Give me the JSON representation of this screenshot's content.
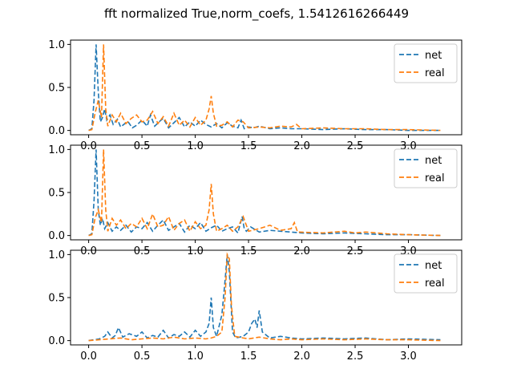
{
  "figure": {
    "title": "fft normalized True,norm_coefs, 1.5412616266449"
  },
  "chart_data": [
    {
      "type": "line",
      "xlim": [
        -0.17,
        3.5
      ],
      "ylim": [
        -0.05,
        1.05
      ],
      "xticks": [
        "0.0",
        "0.5",
        "1.0",
        "1.5",
        "2.0",
        "2.5",
        "3.0"
      ],
      "yticks": [
        "0.0",
        "0.5",
        "1.0"
      ],
      "legend_position": "top-right",
      "series": [
        {
          "name": "net",
          "color": "#1f77b4",
          "x": [
            0.0,
            0.03,
            0.05,
            0.07,
            0.09,
            0.11,
            0.13,
            0.15,
            0.17,
            0.2,
            0.23,
            0.27,
            0.3,
            0.34,
            0.37,
            0.41,
            0.45,
            0.5,
            0.55,
            0.58,
            0.62,
            0.66,
            0.7,
            0.75,
            0.8,
            0.85,
            0.9,
            0.95,
            1.0,
            1.05,
            1.1,
            1.15,
            1.2,
            1.25,
            1.3,
            1.35,
            1.4,
            1.43,
            1.46,
            1.5,
            1.55,
            1.6,
            1.7,
            1.8,
            1.9,
            2.0,
            2.2,
            2.4,
            2.6,
            2.8,
            3.0,
            3.3
          ],
          "y": [
            0.0,
            0.02,
            0.35,
            1.0,
            0.45,
            0.1,
            0.15,
            0.25,
            0.12,
            0.18,
            0.07,
            0.13,
            0.04,
            0.08,
            0.1,
            0.03,
            0.06,
            0.12,
            0.05,
            0.18,
            0.05,
            0.1,
            0.14,
            0.03,
            0.09,
            0.15,
            0.04,
            0.1,
            0.05,
            0.12,
            0.07,
            0.04,
            0.08,
            0.03,
            0.09,
            0.05,
            0.03,
            0.12,
            0.02,
            0.04,
            0.03,
            0.05,
            0.02,
            0.03,
            0.02,
            0.02,
            0.01,
            0.02,
            0.01,
            0.01,
            0.0,
            0.0
          ]
        },
        {
          "name": "real",
          "color": "#ff7f0e",
          "x": [
            0.0,
            0.03,
            0.06,
            0.09,
            0.12,
            0.14,
            0.16,
            0.18,
            0.22,
            0.26,
            0.3,
            0.35,
            0.4,
            0.45,
            0.5,
            0.55,
            0.6,
            0.65,
            0.7,
            0.75,
            0.8,
            0.85,
            0.9,
            0.95,
            1.0,
            1.05,
            1.1,
            1.13,
            1.15,
            1.17,
            1.2,
            1.25,
            1.3,
            1.35,
            1.4,
            1.45,
            1.5,
            1.6,
            1.7,
            1.8,
            1.9,
            1.95,
            2.0,
            2.2,
            2.4,
            2.6,
            2.8,
            3.0,
            3.3
          ],
          "y": [
            0.0,
            0.01,
            0.2,
            0.35,
            0.15,
            1.0,
            0.25,
            0.05,
            0.18,
            0.1,
            0.2,
            0.08,
            0.14,
            0.18,
            0.1,
            0.12,
            0.22,
            0.08,
            0.16,
            0.05,
            0.2,
            0.06,
            0.12,
            0.04,
            0.15,
            0.06,
            0.12,
            0.25,
            0.4,
            0.2,
            0.05,
            0.06,
            0.1,
            0.04,
            0.12,
            0.1,
            0.03,
            0.04,
            0.03,
            0.05,
            0.04,
            0.07,
            0.02,
            0.03,
            0.02,
            0.02,
            0.01,
            0.01,
            0.0
          ]
        }
      ]
    },
    {
      "type": "line",
      "xlim": [
        -0.17,
        3.5
      ],
      "ylim": [
        -0.05,
        1.05
      ],
      "xticks": [
        "0.0",
        "0.5",
        "1.0",
        "1.5",
        "2.0",
        "2.5",
        "3.0"
      ],
      "yticks": [
        "0.0",
        "0.5",
        "1.0"
      ],
      "legend_position": "top-right",
      "series": [
        {
          "name": "net",
          "color": "#1f77b4",
          "x": [
            0.0,
            0.03,
            0.05,
            0.07,
            0.09,
            0.11,
            0.13,
            0.15,
            0.18,
            0.22,
            0.26,
            0.3,
            0.35,
            0.4,
            0.45,
            0.5,
            0.55,
            0.6,
            0.65,
            0.7,
            0.75,
            0.8,
            0.85,
            0.9,
            0.95,
            1.0,
            1.05,
            1.1,
            1.15,
            1.2,
            1.25,
            1.3,
            1.35,
            1.4,
            1.44,
            1.46,
            1.48,
            1.52,
            1.6,
            1.7,
            1.8,
            1.9,
            2.0,
            2.2,
            2.4,
            2.6,
            2.8,
            3.0,
            3.3
          ],
          "y": [
            0.0,
            0.02,
            0.4,
            1.0,
            0.3,
            0.12,
            0.2,
            0.08,
            0.15,
            0.05,
            0.1,
            0.06,
            0.12,
            0.04,
            0.1,
            0.08,
            0.15,
            0.05,
            0.12,
            0.18,
            0.06,
            0.1,
            0.14,
            0.04,
            0.12,
            0.08,
            0.15,
            0.05,
            0.09,
            0.12,
            0.05,
            0.08,
            0.1,
            0.03,
            0.22,
            0.08,
            0.05,
            0.1,
            0.04,
            0.06,
            0.05,
            0.04,
            0.03,
            0.02,
            0.03,
            0.02,
            0.01,
            0.01,
            0.0
          ]
        },
        {
          "name": "real",
          "color": "#ff7f0e",
          "x": [
            0.0,
            0.03,
            0.06,
            0.09,
            0.12,
            0.14,
            0.16,
            0.18,
            0.22,
            0.26,
            0.3,
            0.35,
            0.4,
            0.45,
            0.5,
            0.55,
            0.6,
            0.65,
            0.7,
            0.75,
            0.8,
            0.85,
            0.9,
            0.95,
            1.0,
            1.05,
            1.1,
            1.13,
            1.15,
            1.17,
            1.2,
            1.25,
            1.3,
            1.35,
            1.4,
            1.45,
            1.47,
            1.5,
            1.6,
            1.7,
            1.8,
            1.9,
            1.93,
            1.96,
            2.2,
            2.4,
            2.5,
            2.6,
            2.8,
            3.0,
            3.3
          ],
          "y": [
            0.0,
            0.01,
            0.2,
            0.3,
            0.15,
            1.0,
            0.3,
            0.05,
            0.2,
            0.12,
            0.18,
            0.08,
            0.14,
            0.1,
            0.2,
            0.08,
            0.25,
            0.1,
            0.12,
            0.22,
            0.06,
            0.14,
            0.18,
            0.05,
            0.16,
            0.08,
            0.12,
            0.3,
            0.6,
            0.25,
            0.05,
            0.08,
            0.12,
            0.05,
            0.1,
            0.22,
            0.15,
            0.05,
            0.08,
            0.12,
            0.06,
            0.08,
            0.15,
            0.04,
            0.03,
            0.05,
            0.03,
            0.04,
            0.02,
            0.01,
            0.0
          ]
        }
      ]
    },
    {
      "type": "line",
      "xlim": [
        -0.17,
        3.5
      ],
      "ylim": [
        -0.05,
        1.05
      ],
      "xticks": [
        "0.0",
        "0.5",
        "1.0",
        "1.5",
        "2.0",
        "2.5",
        "3.0"
      ],
      "yticks": [
        "0.0",
        "0.5",
        "1.0"
      ],
      "legend_position": "top-right",
      "series": [
        {
          "name": "net",
          "color": "#1f77b4",
          "x": [
            0.0,
            0.05,
            0.1,
            0.15,
            0.18,
            0.22,
            0.25,
            0.28,
            0.32,
            0.38,
            0.45,
            0.5,
            0.55,
            0.6,
            0.65,
            0.7,
            0.75,
            0.8,
            0.85,
            0.9,
            0.95,
            1.0,
            1.05,
            1.1,
            1.13,
            1.15,
            1.17,
            1.2,
            1.25,
            1.28,
            1.3,
            1.32,
            1.35,
            1.38,
            1.45,
            1.5,
            1.53,
            1.56,
            1.58,
            1.6,
            1.63,
            1.7,
            1.8,
            1.9,
            2.0,
            2.2,
            2.4,
            2.6,
            2.8,
            3.0,
            3.3
          ],
          "y": [
            0.0,
            0.01,
            0.02,
            0.05,
            0.1,
            0.03,
            0.06,
            0.15,
            0.04,
            0.08,
            0.05,
            0.1,
            0.03,
            0.06,
            0.04,
            0.12,
            0.03,
            0.07,
            0.05,
            0.1,
            0.04,
            0.12,
            0.05,
            0.1,
            0.2,
            0.5,
            0.15,
            0.05,
            0.3,
            0.7,
            1.0,
            0.8,
            0.1,
            0.03,
            0.05,
            0.1,
            0.2,
            0.25,
            0.15,
            0.35,
            0.1,
            0.03,
            0.05,
            0.03,
            0.02,
            0.03,
            0.02,
            0.03,
            0.01,
            0.02,
            0.01
          ]
        },
        {
          "name": "real",
          "color": "#ff7f0e",
          "x": [
            0.0,
            0.1,
            0.2,
            0.3,
            0.4,
            0.5,
            0.6,
            0.7,
            0.8,
            0.9,
            1.0,
            1.1,
            1.15,
            1.2,
            1.25,
            1.28,
            1.3,
            1.32,
            1.34,
            1.37,
            1.45,
            1.5,
            1.6,
            1.7,
            1.8,
            1.9,
            2.0,
            2.2,
            2.4,
            2.6,
            2.8,
            3.0,
            3.3
          ],
          "y": [
            0.0,
            0.01,
            0.02,
            0.03,
            0.01,
            0.02,
            0.03,
            0.02,
            0.04,
            0.02,
            0.03,
            0.02,
            0.03,
            0.05,
            0.1,
            0.5,
            1.0,
            0.95,
            0.4,
            0.05,
            0.03,
            0.02,
            0.04,
            0.02,
            0.01,
            0.02,
            0.01,
            0.02,
            0.01,
            0.02,
            0.01,
            0.01,
            0.0
          ]
        }
      ]
    }
  ]
}
